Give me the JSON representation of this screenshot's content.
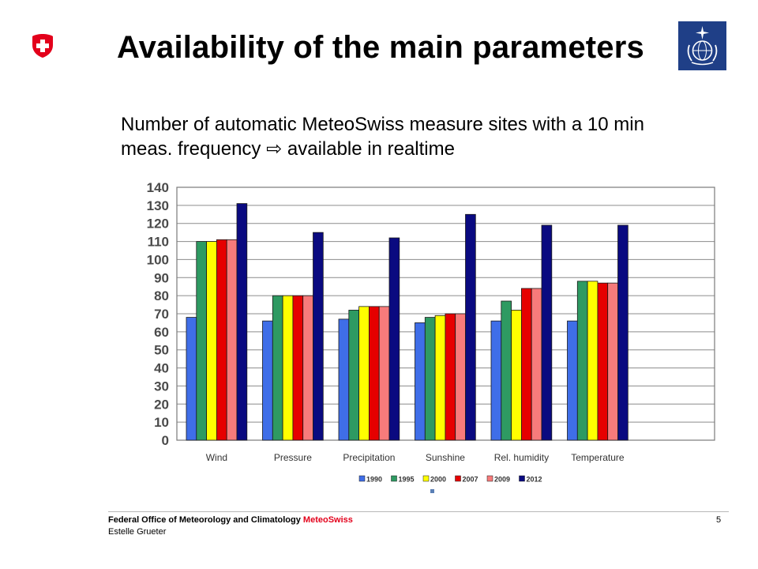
{
  "slide": {
    "title": "Availability of the main parameters",
    "subtitle_line1": "Number of automatic MeteoSwiss measure sites with a 10 min",
    "subtitle_line2": "meas. frequency ⇨ available in realtime"
  },
  "logos": {
    "left": "swiss-cross-icon",
    "right": "wmo-emblem-icon"
  },
  "footer": {
    "org_prefix": "Federal Office of Meteorology and Climatology ",
    "org_brand": "MeteoSwiss",
    "author": "Estelle Grueter",
    "page_number": "5"
  },
  "colors": {
    "swiss_red": "#e3001b",
    "wmo_blue": "#1f3f87"
  },
  "chart_data": {
    "type": "bar",
    "categories": [
      "Wind",
      "Pressure",
      "Precipitation",
      "Sunshine",
      "Rel. humidity",
      "Temperature"
    ],
    "series": [
      {
        "name": "1990",
        "color": "#3f6ee8",
        "values": [
          68,
          66,
          67,
          65,
          66,
          66
        ]
      },
      {
        "name": "1995",
        "color": "#2e9a62",
        "values": [
          110,
          80,
          72,
          68,
          77,
          88
        ]
      },
      {
        "name": "2000",
        "color": "#ffff00",
        "values": [
          110,
          80,
          74,
          69,
          72,
          88
        ]
      },
      {
        "name": "2007",
        "color": "#e60000",
        "values": [
          111,
          80,
          74,
          70,
          84,
          87
        ]
      },
      {
        "name": "2009",
        "color": "#f77b7b",
        "values": [
          111,
          80,
          74,
          70,
          84,
          87
        ]
      },
      {
        "name": "2012",
        "color": "#0a0a80",
        "values": [
          131,
          115,
          112,
          125,
          119,
          119
        ]
      }
    ],
    "ylim": [
      0,
      140
    ],
    "yticks": [
      0,
      10,
      20,
      30,
      40,
      50,
      60,
      70,
      80,
      90,
      100,
      110,
      120,
      130,
      140
    ],
    "grid": true,
    "legend_position": "bottom"
  }
}
